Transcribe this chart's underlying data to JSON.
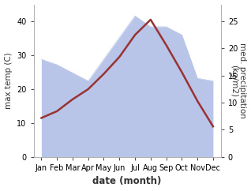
{
  "months": [
    "Jan",
    "Feb",
    "Mar",
    "Apr",
    "May",
    "Jun",
    "Jul",
    "Aug",
    "Sep",
    "Oct",
    "Nov",
    "Dec"
  ],
  "month_x": [
    0,
    1,
    2,
    3,
    4,
    5,
    6,
    7,
    8,
    9,
    10,
    11
  ],
  "temperature": [
    11.5,
    13.5,
    17.0,
    20.0,
    24.5,
    29.5,
    36.0,
    40.5,
    33.0,
    25.0,
    16.5,
    9.0
  ],
  "precipitation": [
    18.0,
    17.0,
    15.5,
    14.0,
    18.0,
    22.0,
    26.0,
    24.0,
    24.0,
    22.5,
    14.5,
    14.0
  ],
  "temp_color": "#993333",
  "precip_fill_color": "#b8c4e8",
  "precip_line_color": "#b8c4e8",
  "xlabel": "date (month)",
  "ylabel_left": "max temp (C)",
  "ylabel_right": "med. precipitation\n(kg/m2)",
  "ylim_left": [
    0,
    45
  ],
  "ylim_right": [
    0,
    28.125
  ],
  "yticks_left": [
    0,
    10,
    20,
    30,
    40
  ],
  "yticks_right": [
    0,
    5,
    10,
    15,
    20,
    25
  ],
  "bg_color": "#ffffff",
  "label_color": "#333333",
  "font_size_label": 7.5,
  "font_size_tick": 7.0,
  "font_size_axis_label": 8.5
}
